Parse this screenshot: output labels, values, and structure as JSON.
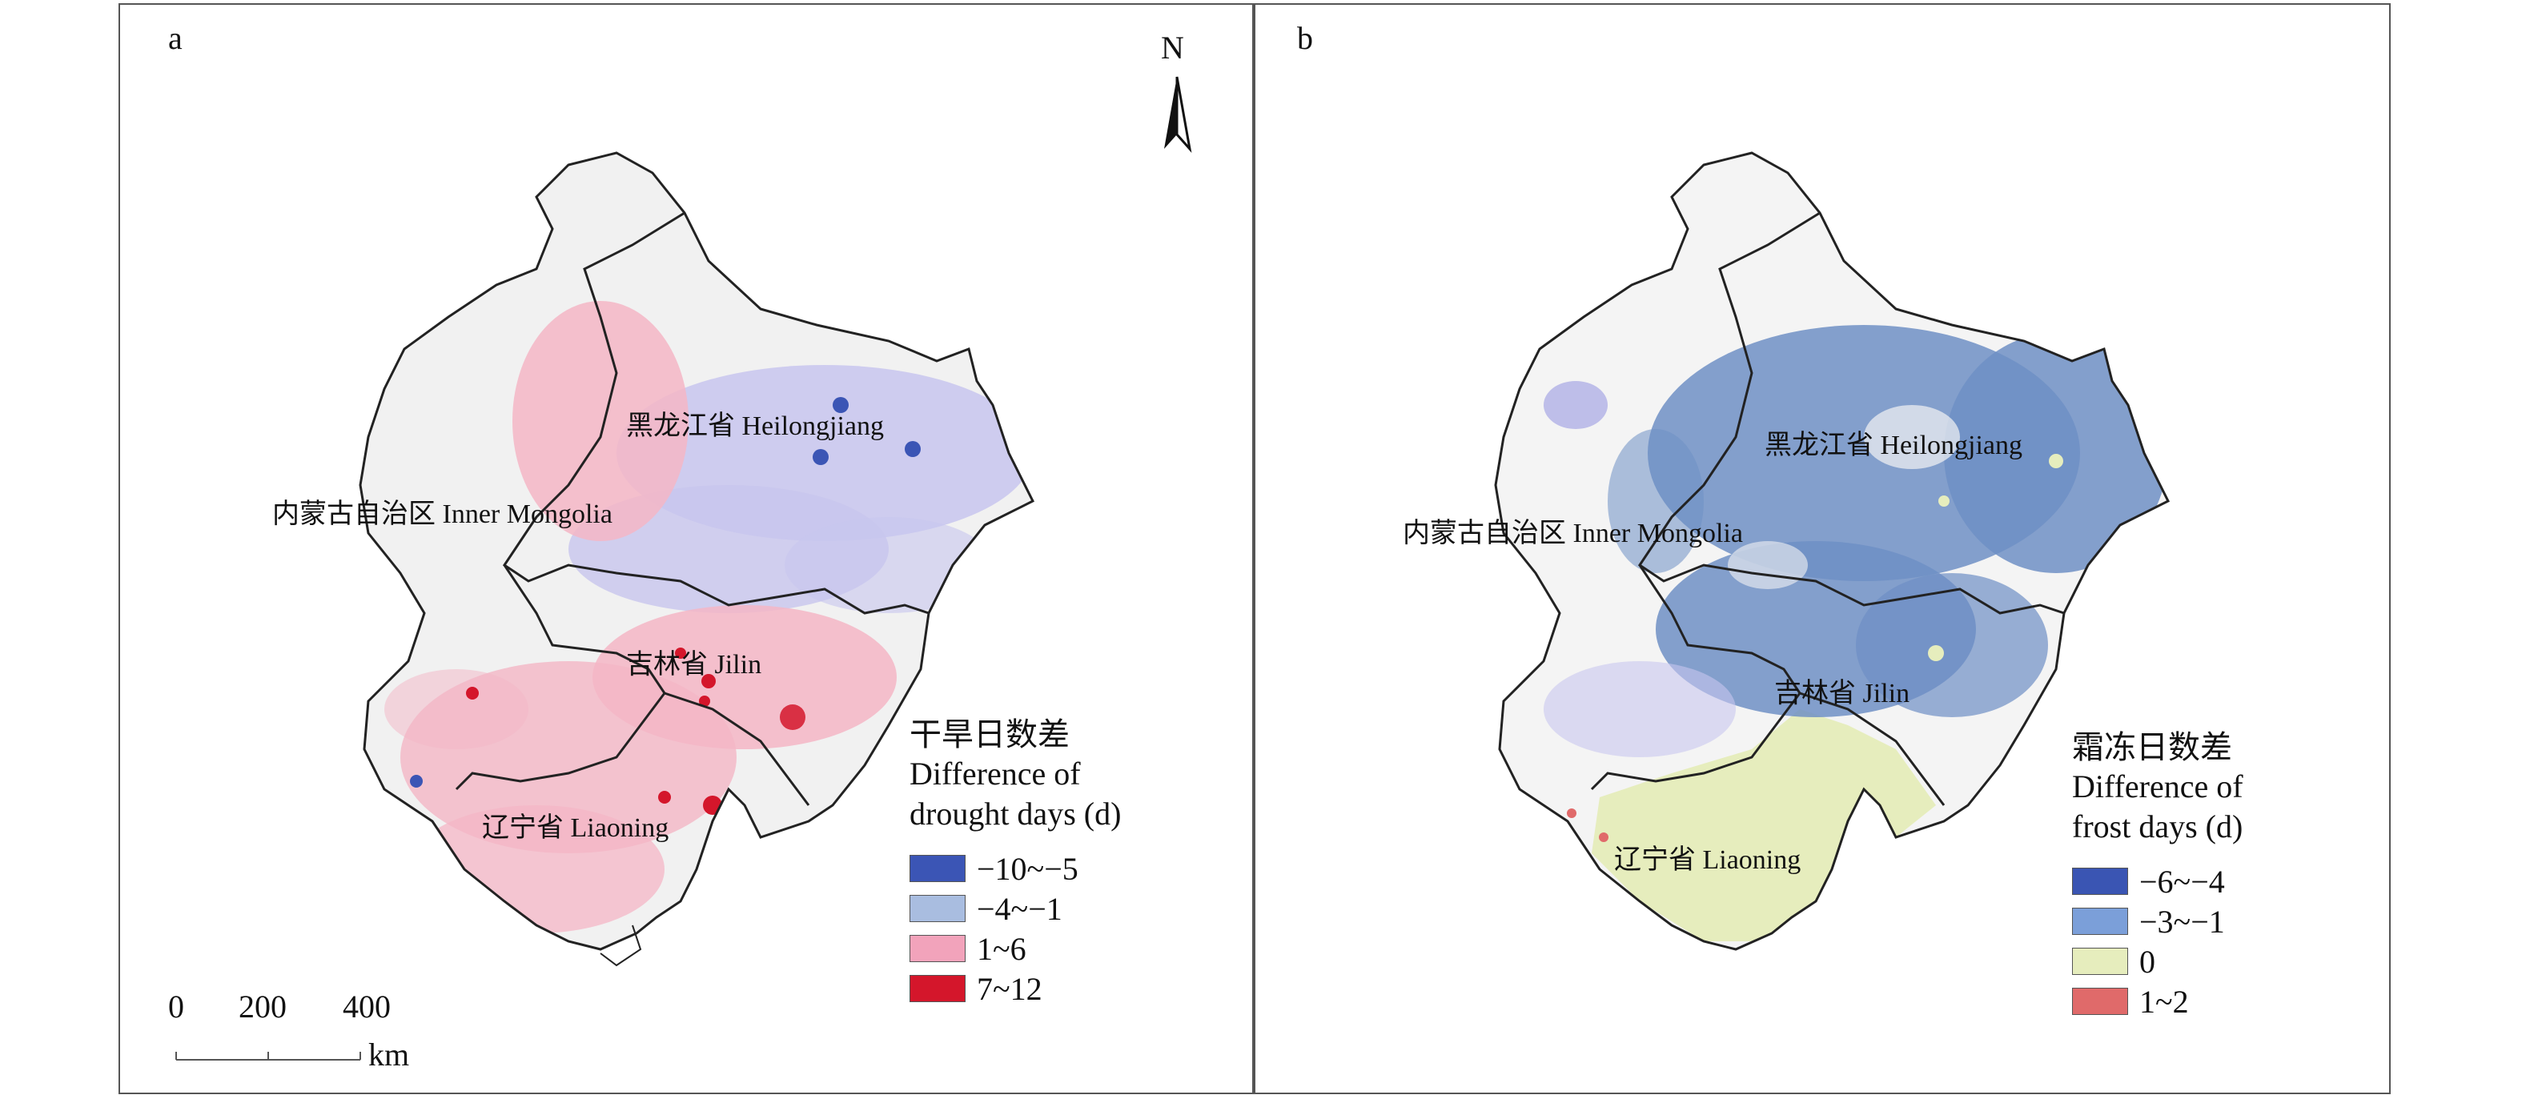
{
  "panel_a": {
    "label": "a",
    "regions": {
      "heilongjiang": "黑龙江省 Heilongjiang",
      "inner_mongolia": "内蒙古自治区 Inner Mongolia",
      "jilin": "吉林省 Jilin",
      "liaoning": "辽宁省 Liaoning"
    },
    "north": "N",
    "scale": {
      "t0": "0",
      "t1": "200",
      "t2": "400",
      "unit": "km"
    },
    "legend": {
      "title_cn": "干旱日数差",
      "title_en1": "Difference of",
      "title_en2": "drought days (d)",
      "items": [
        {
          "label": "−10~−5",
          "color": "#3b55b5"
        },
        {
          "label": "−4~−1",
          "color": "#a9bde0"
        },
        {
          "label": "1~6",
          "color": "#f2a3bb"
        },
        {
          "label": "7~12",
          "color": "#d4162b"
        }
      ]
    }
  },
  "panel_b": {
    "label": "b",
    "regions": {
      "heilongjiang": "黑龙江省 Heilongjiang",
      "inner_mongolia": "内蒙古自治区 Inner Mongolia",
      "jilin": "吉林省 Jilin",
      "liaoning": "辽宁省 Liaoning"
    },
    "legend": {
      "title_cn": "霜冻日数差",
      "title_en1": "Difference of",
      "title_en2": "frost days (d)",
      "items": [
        {
          "label": "−6~−4",
          "color": "#3a55b3"
        },
        {
          "label": "−3~−1",
          "color": "#7b9fd9"
        },
        {
          "label": "0",
          "color": "#e6edbd"
        },
        {
          "label": "1~2",
          "color": "#e06a6a"
        }
      ]
    }
  }
}
